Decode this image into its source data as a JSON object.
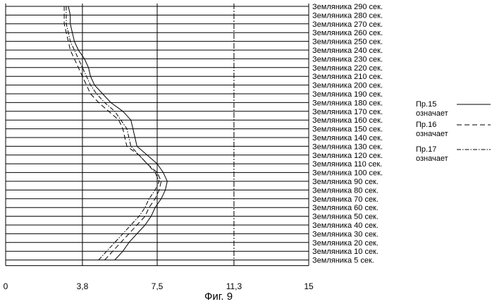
{
  "chart_data": {
    "type": "line",
    "orientation": "horizontal",
    "caption": "Фиг. 9",
    "xlim": [
      0,
      15
    ],
    "x_ticks": [
      "0",
      "3,8",
      "7,5",
      "11,3",
      "15"
    ],
    "x_tick_values": [
      0,
      3.8,
      7.5,
      11.3,
      15
    ],
    "categories": [
      "Земляника 5 сек.",
      "Земляника 10 сек.",
      "Земляника 20 сек.",
      "Земляника 30 сек.",
      "Земляника 40 сек.",
      "Земляника 50 сек.",
      "Земляника 60 сек.",
      "Земляника 70 сек.",
      "Земляника 80 сек.",
      "Земляника 90 сек.",
      "Земляника 100 сек.",
      "Земляника 110 сек.",
      "Земляника 120 сек.",
      "Земляника 130 сек.",
      "Земляника 140 сек.",
      "Земляника 150 сек.",
      "Земляника 160 сек.",
      "Земляника 170 сек.",
      "Земляника 180 сек.",
      "Земляника 190 сек.",
      "Земляника 200 сек.",
      "Земляника 210 сек.",
      "Земляника 220 сек.",
      "Земляника 230 сек.",
      "Земляника 240 сек.",
      "Земляника 250 сек.",
      "Земляника 260 сек.",
      "Земляника 270 сек.",
      "Земляника 280 сек.",
      "Земляника 290 сек."
    ],
    "series": [
      {
        "name": "Пр.15 означает",
        "style": "solid",
        "values": [
          5.4,
          5.8,
          6.1,
          6.5,
          6.9,
          7.2,
          7.4,
          7.7,
          7.9,
          8.0,
          7.8,
          7.5,
          7.0,
          6.5,
          6.4,
          6.3,
          6.2,
          5.8,
          5.2,
          4.8,
          4.4,
          4.2,
          4.1,
          3.9,
          3.6,
          3.4,
          3.3,
          3.2,
          3.2,
          3.1
        ]
      },
      {
        "name": "Пр.16 означает",
        "style": "dashed",
        "values": [
          4.9,
          5.3,
          5.7,
          6.1,
          6.5,
          6.9,
          7.1,
          7.4,
          7.6,
          7.7,
          7.5,
          7.0,
          6.6,
          6.0,
          5.9,
          5.8,
          5.6,
          5.1,
          4.6,
          4.2,
          4.0,
          3.8,
          3.6,
          3.4,
          3.2,
          3.1,
          3.0,
          2.9,
          2.9,
          2.9
        ]
      },
      {
        "name": "Пр.17 означает",
        "style": "dashdot",
        "values": [
          4.6,
          5.0,
          5.4,
          5.8,
          6.2,
          6.6,
          6.9,
          7.1,
          7.4,
          7.6,
          7.4,
          7.0,
          6.6,
          6.2,
          6.1,
          6.0,
          5.7,
          5.4,
          4.9,
          4.5,
          4.2,
          4.0,
          3.8,
          3.6,
          3.4,
          3.2,
          3.1,
          3.0,
          3.0,
          3.0
        ]
      }
    ],
    "grid": true,
    "legend_position": "right"
  }
}
